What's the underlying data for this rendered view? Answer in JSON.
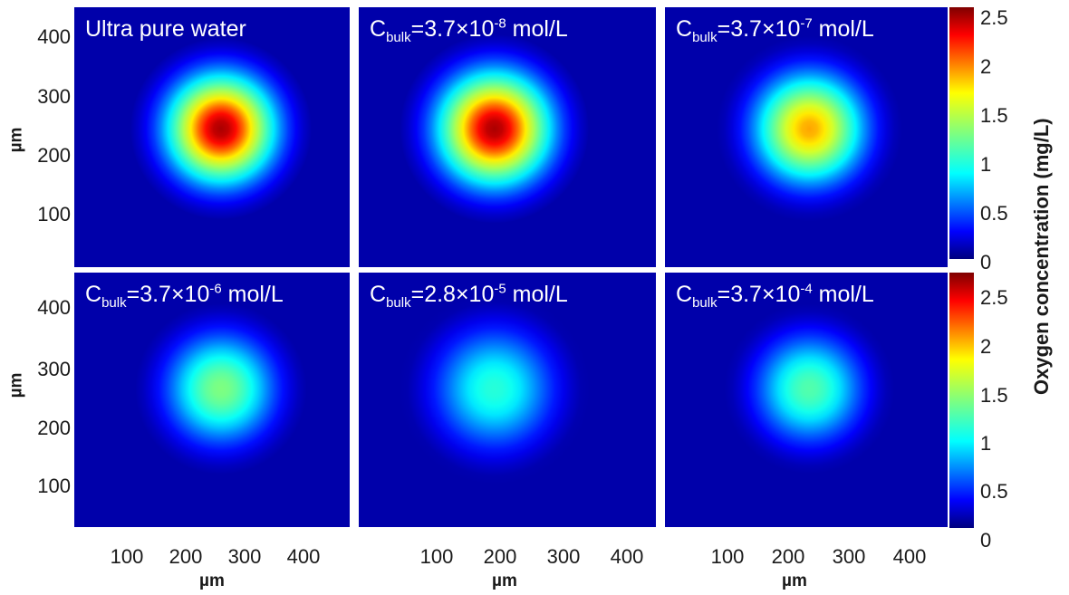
{
  "chart_data": {
    "type": "heatmap",
    "colormap": "jet",
    "panels": [
      {
        "label": "Ultra pure water",
        "label_parts": null,
        "center_x": 245,
        "center_y": 245,
        "peak": 2.6,
        "spread_um": 58
      },
      {
        "label": "Cbulk=3.7×10-8 mol/L",
        "label_parts": {
          "base": "C",
          "sub": "bulk",
          "mid": "=3.7×10",
          "sup": "-8",
          "tail": " mol/L"
        },
        "center_x": 210,
        "center_y": 245,
        "peak": 2.6,
        "spread_um": 56
      },
      {
        "label": "Cbulk=3.7×10-7 mol/L",
        "label_parts": {
          "base": "C",
          "sub": "bulk",
          "mid": "=3.7×10",
          "sup": "-7",
          "tail": " mol/L"
        },
        "center_x": 235,
        "center_y": 245,
        "peak": 2.0,
        "spread_um": 58
      },
      {
        "label": "Cbulk=3.7×10-6 mol/L",
        "label_parts": {
          "base": "C",
          "sub": "bulk",
          "mid": "=3.7×10",
          "sup": "-6",
          "tail": " mol/L"
        },
        "center_x": 245,
        "center_y": 250,
        "peak": 1.35,
        "spread_um": 60
      },
      {
        "label": "Cbulk=2.8×10-5 mol/L",
        "label_parts": {
          "base": "C",
          "sub": "bulk",
          "mid": "=2.8×10",
          "sup": "-5",
          "tail": " mol/L"
        },
        "center_x": 210,
        "center_y": 250,
        "peak": 1.05,
        "spread_um": 62
      },
      {
        "label": "Cbulk=3.7×10-4 mol/L",
        "label_parts": {
          "base": "C",
          "sub": "bulk",
          "mid": "=3.7×10",
          "sup": "-4",
          "tail": " mol/L"
        },
        "center_x": 235,
        "center_y": 250,
        "peak": 1.2,
        "spread_um": 58
      }
    ],
    "x_range": [
      0,
      460
    ],
    "y_range": [
      0,
      460
    ],
    "x_ticks": [
      "100",
      "200",
      "300",
      "400"
    ],
    "y_ticks": [
      "400",
      "300",
      "200",
      "100"
    ],
    "xlabel": "µm",
    "ylabel": "µm",
    "colorbar": {
      "title": "Oxygen concentration (mg/L)",
      "range": [
        0,
        2.7
      ],
      "ticks": [
        "2.5",
        "2",
        "1.5",
        "1",
        "0.5",
        "0"
      ]
    }
  }
}
